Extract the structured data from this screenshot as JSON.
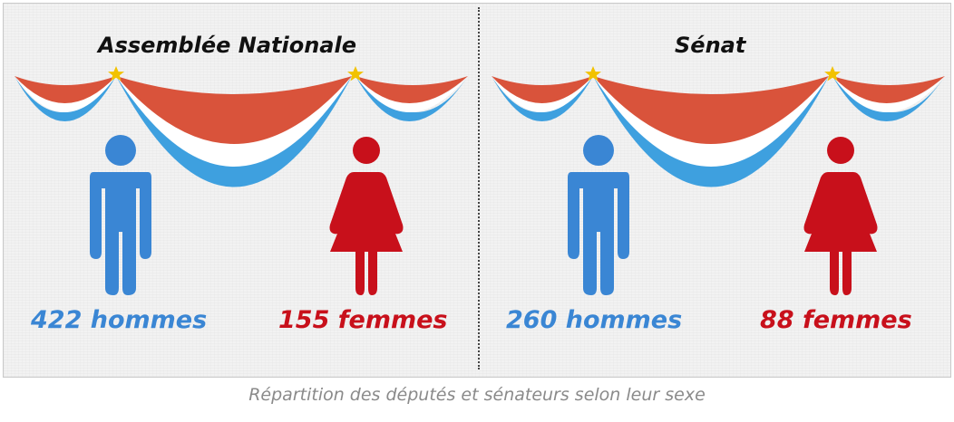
{
  "panels": [
    {
      "title": "Assemblée Nationale",
      "men_label": "422 hommes",
      "women_label": "155 femmes"
    },
    {
      "title": "Sénat",
      "men_label": "260 hommes",
      "women_label": "88 femmes"
    }
  ],
  "caption": "Répartition des députés et sénateurs selon leur sexe",
  "colors": {
    "men": "#3a86d4",
    "women": "#c8101b",
    "drape_red": "#d9533b",
    "drape_blue": "#3ea0df",
    "star": "#f2c200"
  },
  "icons": [
    "garland-bunting",
    "star-icon",
    "man-icon",
    "woman-icon"
  ]
}
